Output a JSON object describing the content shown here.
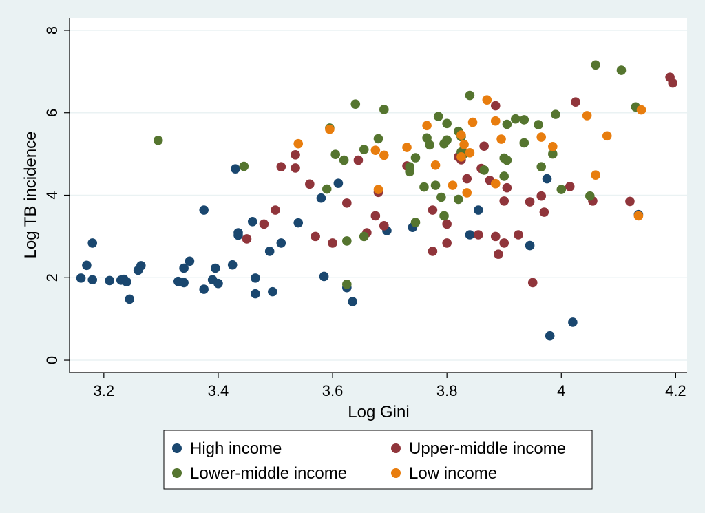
{
  "chart_data": {
    "type": "scatter",
    "title": "",
    "xlabel": "Log Gini",
    "ylabel": "Log TB incidence",
    "xlim": [
      3.14,
      4.22
    ],
    "ylim": [
      -0.3,
      8.3
    ],
    "xticks": [
      3.2,
      3.4,
      3.6,
      3.8,
      4,
      4.2
    ],
    "xtick_labels": [
      "3.2",
      "3.4",
      "3.6",
      "3.8",
      "4",
      "4.2"
    ],
    "yticks": [
      0,
      2,
      4,
      6,
      8
    ],
    "ytick_labels": [
      "0",
      "2",
      "4",
      "6",
      "8"
    ],
    "grid": "horizontal",
    "legend_position": "bottom",
    "background_color": "#eaf2f3",
    "plot_background_color": "#ffffff",
    "series": [
      {
        "name": "High income",
        "color": "#1a476f",
        "points": [
          [
            3.16,
            1.99
          ],
          [
            3.17,
            2.3
          ],
          [
            3.18,
            2.84
          ],
          [
            3.18,
            1.95
          ],
          [
            3.21,
            1.93
          ],
          [
            3.23,
            1.94
          ],
          [
            3.235,
            1.96
          ],
          [
            3.24,
            1.9
          ],
          [
            3.245,
            1.48
          ],
          [
            3.26,
            2.18
          ],
          [
            3.265,
            2.29
          ],
          [
            3.33,
            1.91
          ],
          [
            3.34,
            1.88
          ],
          [
            3.34,
            2.23
          ],
          [
            3.35,
            2.4
          ],
          [
            3.375,
            1.72
          ],
          [
            3.375,
            3.64
          ],
          [
            3.39,
            1.95
          ],
          [
            3.395,
            2.23
          ],
          [
            3.4,
            1.86
          ],
          [
            3.425,
            2.31
          ],
          [
            3.43,
            4.64
          ],
          [
            3.435,
            3.09
          ],
          [
            3.435,
            3.03
          ],
          [
            3.46,
            3.36
          ],
          [
            3.465,
            1.99
          ],
          [
            3.465,
            1.61
          ],
          [
            3.49,
            2.64
          ],
          [
            3.495,
            1.66
          ],
          [
            3.51,
            2.84
          ],
          [
            3.54,
            3.33
          ],
          [
            3.58,
            3.93
          ],
          [
            3.585,
            2.03
          ],
          [
            3.61,
            4.29
          ],
          [
            3.625,
            1.76
          ],
          [
            3.635,
            1.42
          ],
          [
            3.695,
            3.14
          ],
          [
            3.74,
            3.22
          ],
          [
            3.84,
            3.04
          ],
          [
            3.855,
            3.64
          ],
          [
            3.945,
            2.78
          ],
          [
            3.975,
            4.4
          ],
          [
            3.98,
            0.59
          ],
          [
            4.02,
            0.92
          ],
          [
            4.135,
            3.53
          ]
        ]
      },
      {
        "name": "Upper-middle income",
        "color": "#90353b",
        "points": [
          [
            3.45,
            2.94
          ],
          [
            3.48,
            3.3
          ],
          [
            3.5,
            3.64
          ],
          [
            3.51,
            4.69
          ],
          [
            3.535,
            4.66
          ],
          [
            3.535,
            4.98
          ],
          [
            3.56,
            4.27
          ],
          [
            3.57,
            3.0
          ],
          [
            3.6,
            2.84
          ],
          [
            3.625,
            3.81
          ],
          [
            3.645,
            4.85
          ],
          [
            3.66,
            3.09
          ],
          [
            3.675,
            3.5
          ],
          [
            3.68,
            4.07
          ],
          [
            3.69,
            3.26
          ],
          [
            3.73,
            4.71
          ],
          [
            3.775,
            3.64
          ],
          [
            3.775,
            2.64
          ],
          [
            3.8,
            3.3
          ],
          [
            3.8,
            2.84
          ],
          [
            3.82,
            4.93
          ],
          [
            3.825,
            4.86
          ],
          [
            3.835,
            4.4
          ],
          [
            3.855,
            3.04
          ],
          [
            3.86,
            4.65
          ],
          [
            3.865,
            5.19
          ],
          [
            3.875,
            4.36
          ],
          [
            3.885,
            3.0
          ],
          [
            3.885,
            6.17
          ],
          [
            3.89,
            2.57
          ],
          [
            3.9,
            2.84
          ],
          [
            3.9,
            3.86
          ],
          [
            3.905,
            4.18
          ],
          [
            3.925,
            3.04
          ],
          [
            3.945,
            3.84
          ],
          [
            3.95,
            1.88
          ],
          [
            3.965,
            3.98
          ],
          [
            3.97,
            3.59
          ],
          [
            4.015,
            4.21
          ],
          [
            4.025,
            6.26
          ],
          [
            4.055,
            3.86
          ],
          [
            4.12,
            3.85
          ],
          [
            4.19,
            6.86
          ],
          [
            4.195,
            6.72
          ]
        ]
      },
      {
        "name": "Lower-middle income",
        "color": "#55752f",
        "points": [
          [
            3.295,
            5.33
          ],
          [
            3.445,
            4.7
          ],
          [
            3.59,
            4.15
          ],
          [
            3.595,
            5.63
          ],
          [
            3.605,
            4.99
          ],
          [
            3.62,
            4.85
          ],
          [
            3.625,
            2.89
          ],
          [
            3.625,
            1.84
          ],
          [
            3.64,
            6.21
          ],
          [
            3.655,
            5.11
          ],
          [
            3.655,
            3.0
          ],
          [
            3.68,
            5.37
          ],
          [
            3.69,
            6.08
          ],
          [
            3.735,
            4.57
          ],
          [
            3.735,
            4.69
          ],
          [
            3.745,
            4.91
          ],
          [
            3.745,
            3.34
          ],
          [
            3.76,
            4.2
          ],
          [
            3.765,
            5.39
          ],
          [
            3.77,
            5.22
          ],
          [
            3.78,
            4.24
          ],
          [
            3.785,
            5.91
          ],
          [
            3.79,
            3.95
          ],
          [
            3.795,
            3.5
          ],
          [
            3.795,
            5.25
          ],
          [
            3.8,
            5.34
          ],
          [
            3.8,
            5.74
          ],
          [
            3.82,
            5.55
          ],
          [
            3.82,
            3.9
          ],
          [
            3.825,
            5.05
          ],
          [
            3.825,
            5.42
          ],
          [
            3.83,
            5.01
          ],
          [
            3.84,
            6.42
          ],
          [
            3.865,
            4.61
          ],
          [
            3.9,
            4.46
          ],
          [
            3.9,
            4.9
          ],
          [
            3.905,
            5.72
          ],
          [
            3.905,
            4.85
          ],
          [
            3.92,
            5.85
          ],
          [
            3.935,
            5.27
          ],
          [
            3.935,
            5.83
          ],
          [
            3.96,
            5.71
          ],
          [
            3.965,
            4.69
          ],
          [
            3.985,
            5.0
          ],
          [
            3.99,
            5.96
          ],
          [
            4.0,
            4.14
          ],
          [
            4.05,
            3.98
          ],
          [
            4.06,
            7.16
          ],
          [
            4.105,
            7.03
          ],
          [
            4.13,
            6.14
          ]
        ]
      },
      {
        "name": "Low income",
        "color": "#e87d0e",
        "points": [
          [
            3.54,
            5.25
          ],
          [
            3.595,
            5.6
          ],
          [
            3.675,
            5.09
          ],
          [
            3.68,
            4.14
          ],
          [
            3.69,
            4.97
          ],
          [
            3.73,
            5.16
          ],
          [
            3.765,
            5.69
          ],
          [
            3.78,
            4.73
          ],
          [
            3.81,
            4.24
          ],
          [
            3.825,
            5.46
          ],
          [
            3.825,
            4.93
          ],
          [
            3.83,
            5.23
          ],
          [
            3.835,
            4.06
          ],
          [
            3.84,
            5.03
          ],
          [
            3.845,
            5.77
          ],
          [
            3.87,
            6.31
          ],
          [
            3.885,
            5.8
          ],
          [
            3.885,
            4.28
          ],
          [
            3.895,
            5.36
          ],
          [
            3.965,
            5.41
          ],
          [
            3.985,
            5.18
          ],
          [
            4.045,
            5.93
          ],
          [
            4.06,
            4.49
          ],
          [
            4.08,
            5.44
          ],
          [
            4.135,
            3.5
          ],
          [
            4.14,
            6.07
          ]
        ]
      }
    ]
  }
}
